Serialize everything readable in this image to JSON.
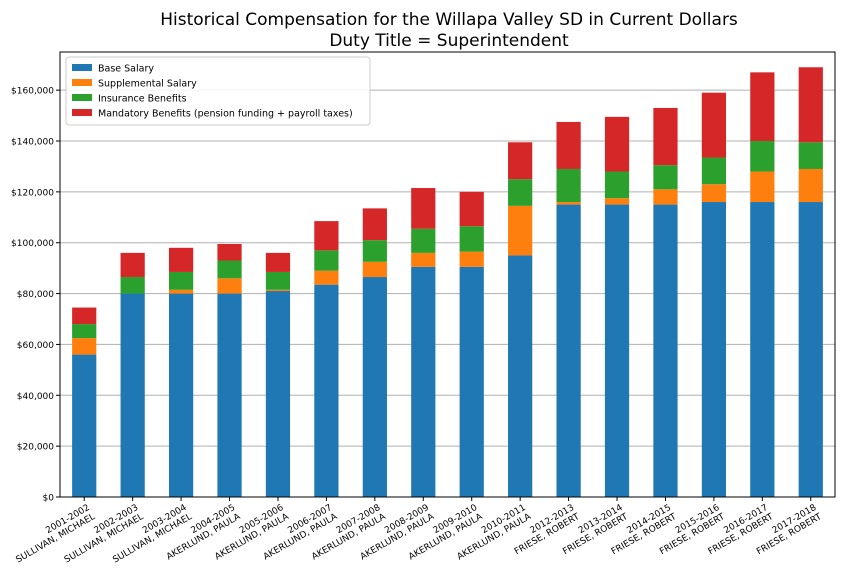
{
  "chart_data": {
    "type": "bar",
    "stacked": true,
    "title_line1": "Historical Compensation for the Willapa Valley SD in Current Dollars",
    "title_line2": "Duty Title = Superintendent",
    "xlabel": "",
    "ylabel": "",
    "ylim": [
      0,
      175000
    ],
    "yticks": [
      0,
      20000,
      40000,
      60000,
      80000,
      100000,
      120000,
      140000,
      160000
    ],
    "ytick_labels": [
      "$0",
      "$20,000",
      "$40,000",
      "$60,000",
      "$80,000",
      "$100,000",
      "$120,000",
      "$140,000",
      "$160,000"
    ],
    "grid": "horizontal",
    "legend_position": "top-left",
    "categories": [
      {
        "year": "2001-2002",
        "name": "SULLIVAN, MICHAEL"
      },
      {
        "year": "2002-2003",
        "name": "SULLIVAN, MICHAEL"
      },
      {
        "year": "2003-2004",
        "name": "SULLIVAN, MICHAEL"
      },
      {
        "year": "2004-2005",
        "name": "AKERLUND, PAULA"
      },
      {
        "year": "2005-2006",
        "name": "AKERLUND, PAULA"
      },
      {
        "year": "2006-2007",
        "name": "AKERLUND, PAULA"
      },
      {
        "year": "2007-2008",
        "name": "AKERLUND, PAULA"
      },
      {
        "year": "2008-2009",
        "name": "AKERLUND, PAULA"
      },
      {
        "year": "2009-2010",
        "name": "AKERLUND, PAULA"
      },
      {
        "year": "2010-2011",
        "name": "AKERLUND, PAULA"
      },
      {
        "year": "2012-2013",
        "name": "FRIESE, ROBERT"
      },
      {
        "year": "2013-2014",
        "name": "FRIESE, ROBERT"
      },
      {
        "year": "2014-2015",
        "name": "FRIESE, ROBERT"
      },
      {
        "year": "2015-2016",
        "name": "FRIESE, ROBERT"
      },
      {
        "year": "2016-2017",
        "name": "FRIESE, ROBERT"
      },
      {
        "year": "2017-2018",
        "name": "FRIESE, ROBERT"
      }
    ],
    "series": [
      {
        "name": "Base Salary",
        "color": "#1f77b4",
        "values": [
          56000,
          80000,
          80000,
          80000,
          81000,
          83500,
          86500,
          90500,
          90500,
          95000,
          115000,
          115000,
          115000,
          116000,
          116000,
          116000
        ]
      },
      {
        "name": "Supplemental Salary",
        "color": "#ff7f0e",
        "values": [
          6500,
          0,
          1500,
          6000,
          500,
          5500,
          6000,
          5500,
          6000,
          19500,
          1000,
          2500,
          6000,
          7000,
          12000,
          13000
        ]
      },
      {
        "name": "Insurance Benefits",
        "color": "#2ca02c",
        "values": [
          5500,
          6500,
          7000,
          7000,
          7000,
          8000,
          8500,
          9500,
          10000,
          10500,
          13000,
          10500,
          9500,
          10500,
          12000,
          10500
        ]
      },
      {
        "name": "Mandatory Benefits (pension funding + payroll taxes)",
        "color": "#d62728",
        "values": [
          6500,
          9500,
          9500,
          6500,
          7500,
          11500,
          12500,
          16000,
          13500,
          14500,
          18500,
          21500,
          22500,
          25500,
          27000,
          29500
        ]
      }
    ]
  }
}
